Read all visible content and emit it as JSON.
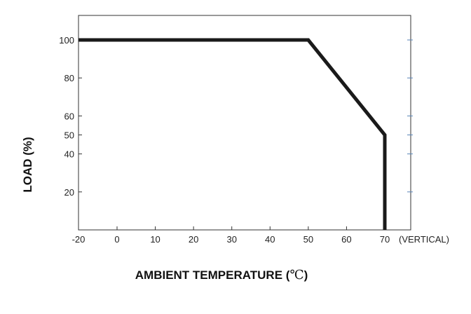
{
  "chart_data": {
    "type": "line",
    "xlabel_prefix": "AMBIENT TEMPERATURE (",
    "xlabel_unit": "℃",
    "xlabel_suffix": ")",
    "ylabel": "LOAD (%)",
    "x_ticks": [
      "-20",
      "0",
      "10",
      "20",
      "30",
      "40",
      "50",
      "60",
      "70"
    ],
    "y_ticks": [
      "20",
      "40",
      "50",
      "60",
      "80",
      "100"
    ],
    "x_tick_values": [
      -20,
      0,
      10,
      20,
      30,
      40,
      50,
      60,
      70
    ],
    "y_tick_values": [
      20,
      40,
      50,
      60,
      80,
      100
    ],
    "x_suffix_label": "(VERTICAL)",
    "xlim": [
      -20,
      70
    ],
    "ylim": [
      0,
      100
    ],
    "grid": false,
    "series": [
      {
        "x": [
          -20,
          50,
          70,
          70
        ],
        "y": [
          100,
          100,
          50,
          0
        ]
      }
    ],
    "line_color": "#1a1a1a",
    "right_tick_color": "#5a86b8"
  }
}
